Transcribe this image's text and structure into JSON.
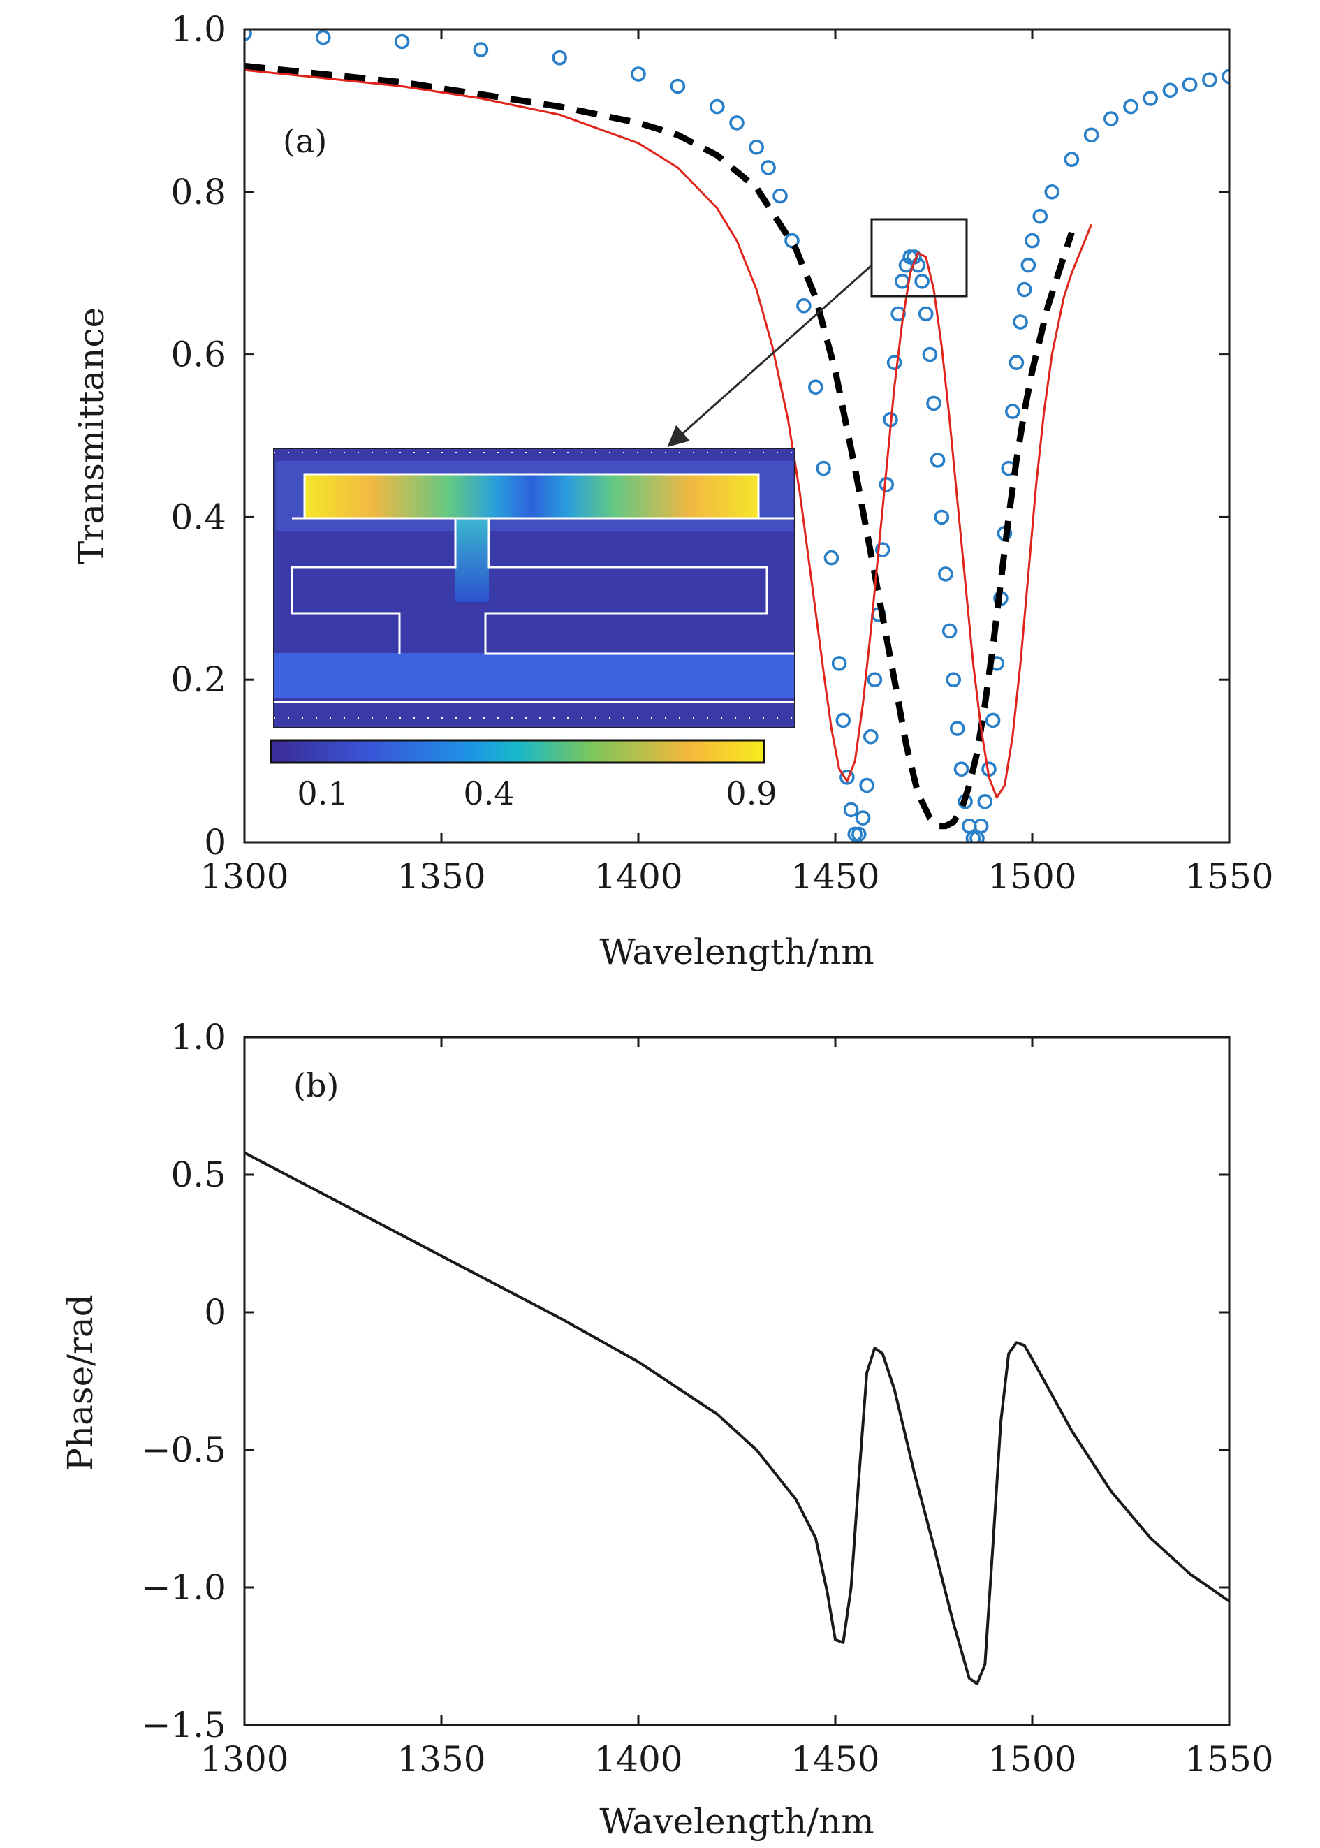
{
  "chart_data": [
    {
      "type": "line",
      "panel_label": "(a)",
      "xlabel": "Wavelength/nm",
      "ylabel": "Transmittance",
      "xlim": [
        1300,
        1550
      ],
      "ylim": [
        0,
        1.0
      ],
      "xticks": [
        "1300",
        "1350",
        "1400",
        "1450",
        "1500",
        "1550"
      ],
      "yticks": [
        "0",
        "0.2",
        "0.4",
        "0.6",
        "0.8",
        "1.0"
      ],
      "grid": false,
      "legend": "none",
      "series": [
        {
          "style": "circles",
          "color": "#2a7fc9",
          "x": [
            1300,
            1320,
            1340,
            1360,
            1380,
            1400,
            1410,
            1420,
            1425,
            1430,
            1433,
            1436,
            1439,
            1442,
            1445,
            1447,
            1449,
            1451,
            1452,
            1453,
            1454,
            1455,
            1456,
            1457,
            1458,
            1459,
            1460,
            1461,
            1462,
            1463,
            1464,
            1465,
            1466,
            1467,
            1468,
            1469,
            1470,
            1471,
            1472,
            1473,
            1474,
            1475,
            1476,
            1477,
            1478,
            1479,
            1480,
            1481,
            1482,
            1483,
            1484,
            1485,
            1486,
            1487,
            1488,
            1489,
            1490,
            1491,
            1492,
            1493,
            1494,
            1495,
            1496,
            1497,
            1498,
            1499,
            1500,
            1502,
            1505,
            1510,
            1515,
            1520,
            1525,
            1530,
            1535,
            1540,
            1545,
            1550
          ],
          "y": [
            0.995,
            0.99,
            0.985,
            0.975,
            0.965,
            0.945,
            0.93,
            0.905,
            0.885,
            0.855,
            0.83,
            0.795,
            0.74,
            0.66,
            0.56,
            0.46,
            0.35,
            0.22,
            0.15,
            0.08,
            0.04,
            0.01,
            0.01,
            0.03,
            0.07,
            0.13,
            0.2,
            0.28,
            0.36,
            0.44,
            0.52,
            0.59,
            0.65,
            0.69,
            0.71,
            0.72,
            0.72,
            0.71,
            0.69,
            0.65,
            0.6,
            0.54,
            0.47,
            0.4,
            0.33,
            0.26,
            0.2,
            0.14,
            0.09,
            0.05,
            0.02,
            0.005,
            0.005,
            0.02,
            0.05,
            0.09,
            0.15,
            0.22,
            0.3,
            0.38,
            0.46,
            0.53,
            0.59,
            0.64,
            0.68,
            0.71,
            0.74,
            0.77,
            0.8,
            0.84,
            0.87,
            0.89,
            0.905,
            0.915,
            0.925,
            0.932,
            0.938,
            0.942
          ]
        },
        {
          "style": "dashed",
          "color": "#000000",
          "x": [
            1300,
            1320,
            1340,
            1360,
            1380,
            1400,
            1410,
            1420,
            1430,
            1440,
            1445,
            1450,
            1455,
            1460,
            1465,
            1468,
            1471,
            1474,
            1476,
            1478,
            1480,
            1482,
            1484,
            1486,
            1488,
            1490,
            1492,
            1494,
            1496,
            1498,
            1500,
            1502,
            1504,
            1506,
            1508,
            1510
          ],
          "y": [
            0.955,
            0.945,
            0.935,
            0.92,
            0.905,
            0.885,
            0.87,
            0.845,
            0.805,
            0.73,
            0.67,
            0.58,
            0.46,
            0.33,
            0.2,
            0.12,
            0.06,
            0.03,
            0.02,
            0.02,
            0.025,
            0.04,
            0.07,
            0.11,
            0.17,
            0.24,
            0.32,
            0.4,
            0.47,
            0.53,
            0.58,
            0.62,
            0.66,
            0.69,
            0.72,
            0.75
          ]
        },
        {
          "style": "solid",
          "color": "#e0231b",
          "x": [
            1300,
            1320,
            1340,
            1360,
            1380,
            1400,
            1410,
            1420,
            1425,
            1430,
            1434,
            1438,
            1441,
            1444,
            1447,
            1449,
            1451,
            1453,
            1455,
            1457,
            1459,
            1461,
            1463,
            1465,
            1467,
            1469,
            1471,
            1473,
            1475,
            1477,
            1479,
            1481,
            1483,
            1485,
            1487,
            1489,
            1491,
            1493,
            1495,
            1497,
            1499,
            1501,
            1503,
            1505,
            1508,
            1510,
            1515
          ],
          "y": [
            0.95,
            0.94,
            0.93,
            0.915,
            0.895,
            0.86,
            0.83,
            0.78,
            0.74,
            0.68,
            0.61,
            0.52,
            0.43,
            0.32,
            0.21,
            0.14,
            0.09,
            0.075,
            0.1,
            0.17,
            0.26,
            0.36,
            0.46,
            0.56,
            0.64,
            0.7,
            0.725,
            0.72,
            0.68,
            0.61,
            0.52,
            0.42,
            0.32,
            0.22,
            0.14,
            0.08,
            0.055,
            0.07,
            0.13,
            0.22,
            0.33,
            0.44,
            0.53,
            0.6,
            0.67,
            0.7,
            0.76
          ]
        }
      ],
      "inset": {
        "type": "heatmap",
        "colorbar_ticks": [
          "0.1",
          "0.4",
          "0.9"
        ]
      }
    },
    {
      "type": "line",
      "panel_label": "(b)",
      "xlabel": "Wavelength/nm",
      "ylabel": "Phase/rad",
      "xlim": [
        1300,
        1550
      ],
      "ylim": [
        -1.5,
        1.0
      ],
      "xticks": [
        "1300",
        "1350",
        "1400",
        "1450",
        "1500",
        "1550"
      ],
      "yticks": [
        "−1.5",
        "−1.0",
        "−0.5",
        "0",
        "0.5",
        "1.0"
      ],
      "grid": false,
      "legend": "none",
      "series": [
        {
          "style": "solid",
          "color": "#1a1a1a",
          "x": [
            1300,
            1320,
            1340,
            1360,
            1380,
            1400,
            1420,
            1430,
            1440,
            1445,
            1448,
            1450,
            1452,
            1454,
            1456,
            1458,
            1460,
            1462,
            1465,
            1470,
            1475,
            1480,
            1484,
            1486,
            1488,
            1490,
            1492,
            1494,
            1496,
            1498,
            1500,
            1505,
            1510,
            1520,
            1530,
            1540,
            1550
          ],
          "y": [
            0.58,
            0.43,
            0.28,
            0.13,
            -0.02,
            -0.18,
            -0.37,
            -0.5,
            -0.68,
            -0.82,
            -1.02,
            -1.19,
            -1.2,
            -1.0,
            -0.6,
            -0.22,
            -0.13,
            -0.15,
            -0.28,
            -0.58,
            -0.85,
            -1.13,
            -1.33,
            -1.35,
            -1.28,
            -0.85,
            -0.4,
            -0.15,
            -0.11,
            -0.12,
            -0.17,
            -0.3,
            -0.43,
            -0.65,
            -0.82,
            -0.95,
            -1.05
          ]
        }
      ]
    }
  ]
}
